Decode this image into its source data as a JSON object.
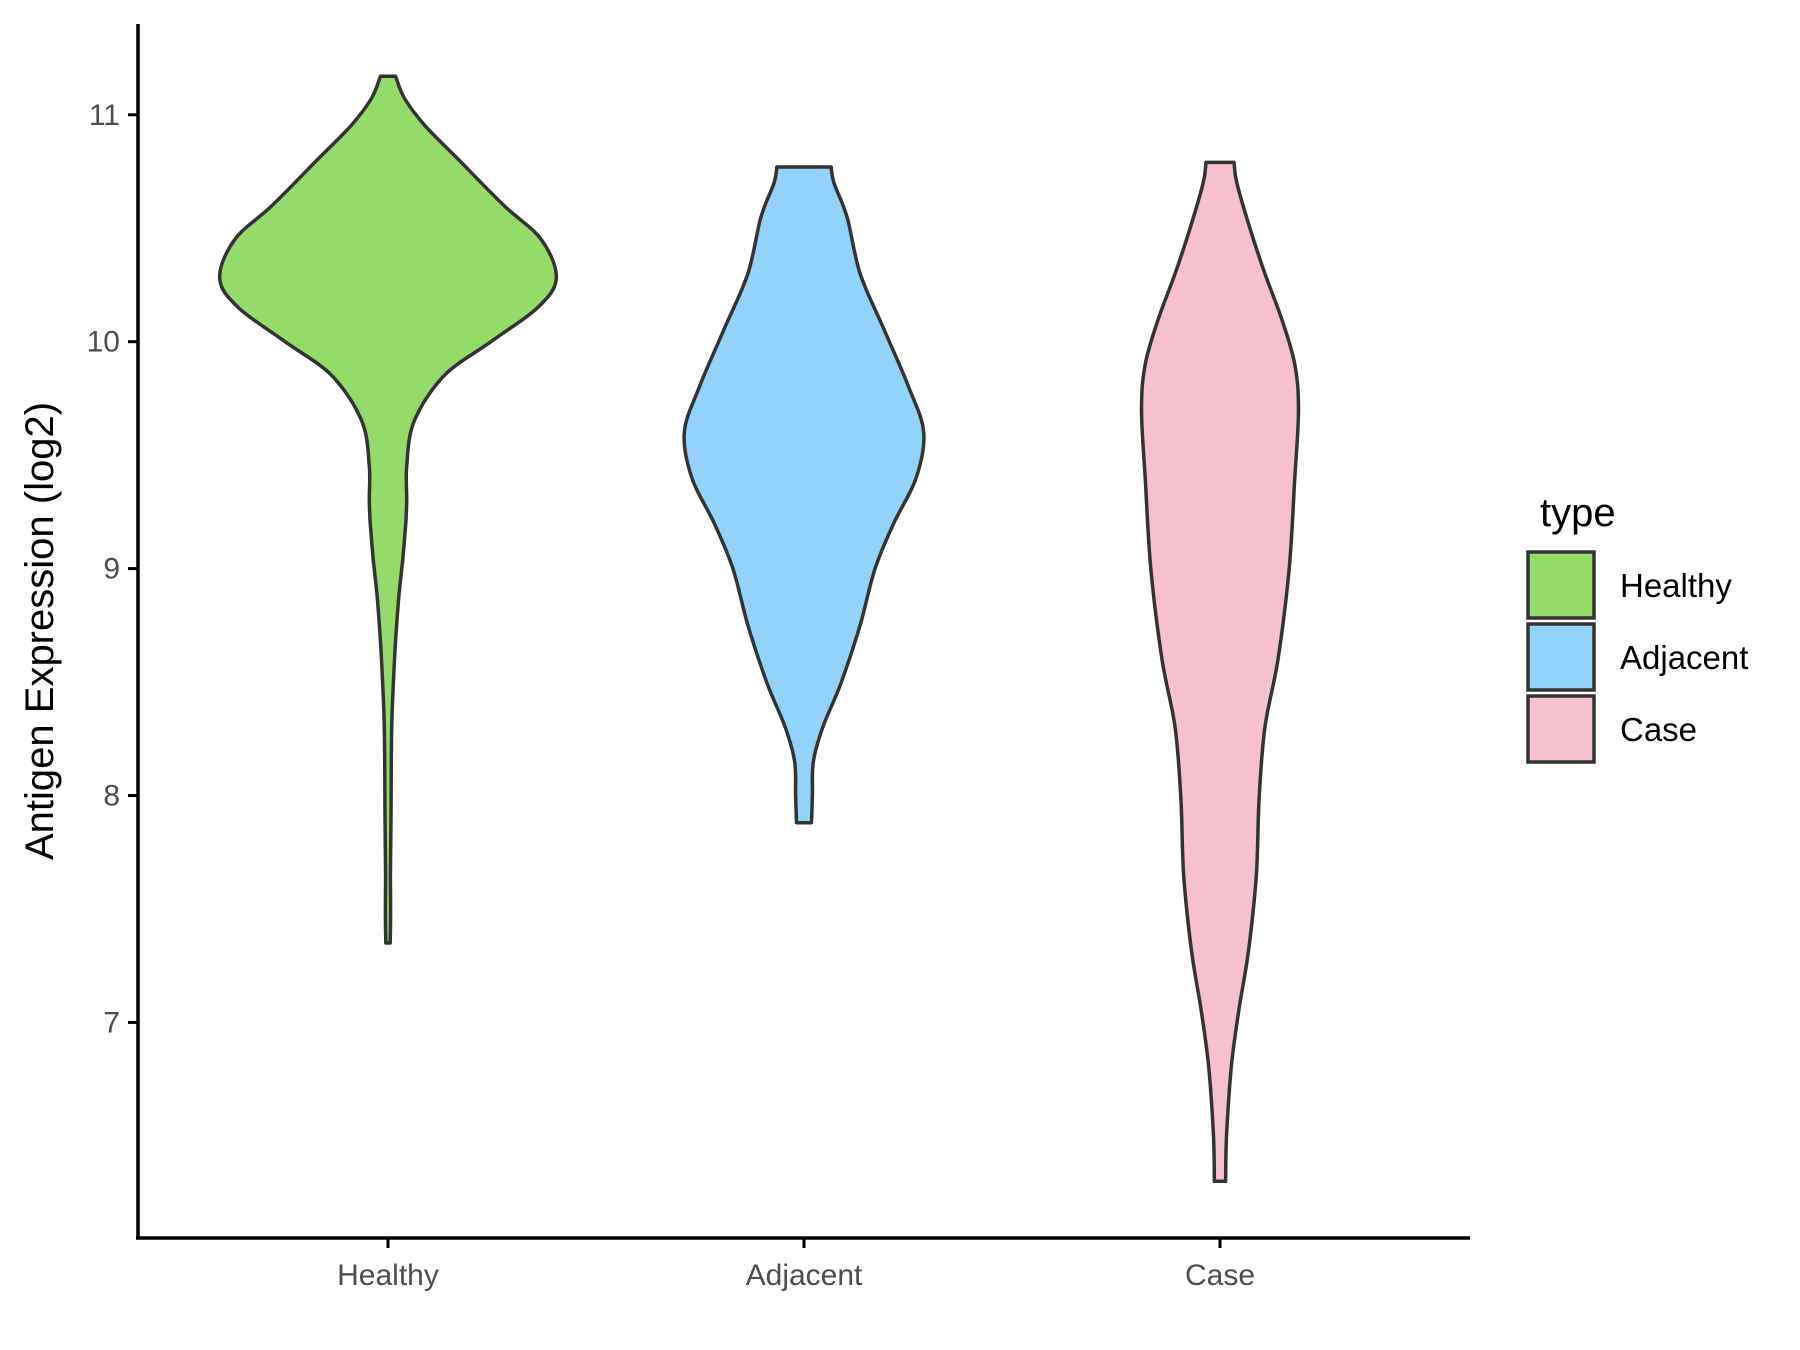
{
  "chart_data": {
    "type": "violin",
    "ylabel": "Antigen Expression (log2)",
    "xlabel": "",
    "ylim": [
      6.05,
      11.4
    ],
    "yticks": [
      7,
      8,
      9,
      10,
      11
    ],
    "categories": [
      "Healthy",
      "Adjacent",
      "Case"
    ],
    "legend": {
      "title": "type",
      "position": "right",
      "entries": [
        "Healthy",
        "Adjacent",
        "Case"
      ]
    },
    "grid": false,
    "series": [
      {
        "name": "Healthy",
        "color": "#93DC6A",
        "profile": [
          [
            7.35,
            0.012
          ],
          [
            7.5,
            0.014
          ],
          [
            7.65,
            0.013
          ],
          [
            7.9,
            0.016
          ],
          [
            8.3,
            0.02
          ],
          [
            8.6,
            0.035
          ],
          [
            8.85,
            0.055
          ],
          [
            9.05,
            0.08
          ],
          [
            9.2,
            0.095
          ],
          [
            9.3,
            0.1
          ],
          [
            9.45,
            0.1
          ],
          [
            9.65,
            0.14
          ],
          [
            9.85,
            0.3
          ],
          [
            10.0,
            0.55
          ],
          [
            10.15,
            0.8
          ],
          [
            10.28,
            0.9
          ],
          [
            10.45,
            0.82
          ],
          [
            10.6,
            0.62
          ],
          [
            10.8,
            0.38
          ],
          [
            10.95,
            0.2
          ],
          [
            11.07,
            0.09
          ],
          [
            11.17,
            0.04
          ]
        ]
      },
      {
        "name": "Adjacent",
        "color": "#92D3FC",
        "profile": [
          [
            7.88,
            0.04
          ],
          [
            8.0,
            0.045
          ],
          [
            8.15,
            0.05
          ],
          [
            8.3,
            0.1
          ],
          [
            8.5,
            0.2
          ],
          [
            8.75,
            0.3
          ],
          [
            9.0,
            0.38
          ],
          [
            9.2,
            0.48
          ],
          [
            9.4,
            0.6
          ],
          [
            9.6,
            0.64
          ],
          [
            9.8,
            0.56
          ],
          [
            10.05,
            0.43
          ],
          [
            10.3,
            0.3
          ],
          [
            10.55,
            0.23
          ],
          [
            10.7,
            0.16
          ],
          [
            10.77,
            0.145
          ]
        ]
      },
      {
        "name": "Case",
        "color": "#F7C0CC",
        "profile": [
          [
            6.3,
            0.03
          ],
          [
            6.5,
            0.035
          ],
          [
            6.8,
            0.06
          ],
          [
            7.05,
            0.1
          ],
          [
            7.3,
            0.15
          ],
          [
            7.6,
            0.19
          ],
          [
            7.75,
            0.2
          ],
          [
            8.0,
            0.21
          ],
          [
            8.3,
            0.24
          ],
          [
            8.6,
            0.31
          ],
          [
            9.0,
            0.37
          ],
          [
            9.4,
            0.4
          ],
          [
            9.7,
            0.42
          ],
          [
            9.9,
            0.4
          ],
          [
            10.1,
            0.33
          ],
          [
            10.3,
            0.24
          ],
          [
            10.5,
            0.16
          ],
          [
            10.7,
            0.09
          ],
          [
            10.79,
            0.075
          ]
        ]
      }
    ]
  }
}
